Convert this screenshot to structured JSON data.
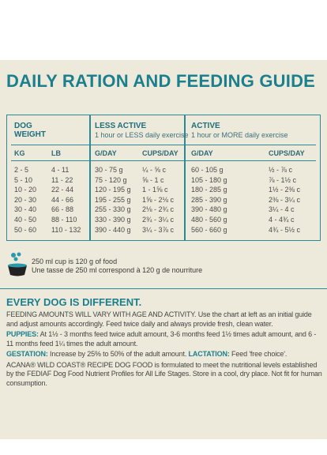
{
  "title": "DAILY RATION AND FEEDING GUIDE",
  "table": {
    "groups": [
      {
        "name": "DOG WEIGHT",
        "note": null
      },
      {
        "name": "LESS ACTIVE",
        "note": "1 hour or LESS daily exercise"
      },
      {
        "name": "ACTIVE",
        "note": "1 hour or MORE daily exercise"
      }
    ],
    "columns": [
      "KG",
      "LB",
      "G/DAY",
      "CUPS/DAY",
      "G/DAY",
      "CUPS/DAY"
    ],
    "rows": [
      [
        "2 - 5",
        "4 - 11",
        "30 - 75 g",
        "¼ - ⅝ c",
        "60 - 105 g",
        "½ - ⅞ c"
      ],
      [
        "5 - 10",
        "11 - 22",
        "75 - 120 g",
        "⅝ - 1 c",
        "105 - 180 g",
        "⅞ - 1½ c"
      ],
      [
        "10 - 20",
        "22 - 44",
        "120 - 195 g",
        "1 - 1⅝ c",
        "180 - 285 g",
        "1½ - 2⅜ c"
      ],
      [
        "20 - 30",
        "44 - 66",
        "195 - 255 g",
        "1⅝ - 2⅛ c",
        "285 - 390 g",
        "2⅜ - 3¼ c"
      ],
      [
        "30 - 40",
        "66 - 88",
        "255 - 330 g",
        "2⅛ - 2¾ c",
        "390 - 480 g",
        "3¼ - 4 c"
      ],
      [
        "40 - 50",
        "88 - 110",
        "330 - 390 g",
        "2¾ - 3¼ c",
        "480 - 560 g",
        "4 - 4¾ c"
      ],
      [
        "50 - 60",
        "110 - 132",
        "390 - 440 g",
        "3¼ - 3⅞ c",
        "560 - 660 g",
        "4¾ - 5½ c"
      ]
    ]
  },
  "cup_note": {
    "en": "250 ml cup is 120 g of food",
    "fr": "Une tasse de 250 ml correspond à 120 g de nourriture"
  },
  "section": {
    "heading": "EVERY DOG IS DIFFERENT.",
    "paragraphs": [
      [
        {
          "text": "FEEDING AMOUNTS WILL VARY WITH AGE AND ACTIVITY.",
          "bold": false
        },
        {
          "text": " Use the chart at left as an initial guide and adjust amounts accordingly. Feed twice daily and always provide fresh, clean water.",
          "bold": false
        }
      ],
      [
        {
          "text": "PUPPIES:",
          "bold": true
        },
        {
          "text": " At 1½ - 3 months feed twice adult amount, 3-6 months feed 1½ times adult amount, and 6 - 11 months feed 1¼ times the adult amount.",
          "bold": false
        }
      ],
      [
        {
          "text": "GESTATION:",
          "bold": true
        },
        {
          "text": " Increase by 25% to 50% of the adult amount. ",
          "bold": false
        },
        {
          "text": "LACTATION:",
          "bold": true
        },
        {
          "text": " Feed 'free choice'.",
          "bold": false
        }
      ],
      [
        {
          "text": "ACANA® WILD COAST® RECIPE DOG FOOD is formulated to meet the nutritional levels established by the FEDIAF Dog Food Nutrient Profiles for All Life Stages. Store in a cool, dry place. Not fit for human consumption.",
          "bold": false
        }
      ]
    ]
  }
}
